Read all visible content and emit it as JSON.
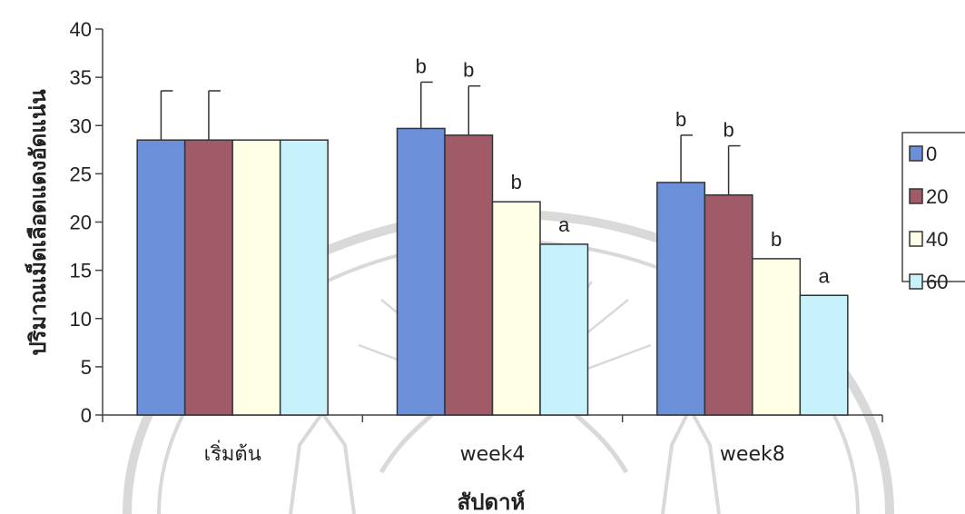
{
  "chart_data": {
    "type": "bar",
    "title": "",
    "xlabel": "สัปดาห์",
    "ylabel": "ปริมาณเม็ดเลือดแดงอัดแน่น",
    "ylim": [
      0,
      40
    ],
    "yticks": [
      "0",
      "5",
      "10",
      "15",
      "20",
      "25",
      "30",
      "35",
      "40"
    ],
    "categories": [
      "เริ่มต้น",
      "week4",
      "week8"
    ],
    "series": [
      {
        "name": "0",
        "color": "#6b8fd8",
        "values": [
          28.5,
          29.7,
          24.1
        ],
        "errors": [
          5.1,
          4.8,
          4.9
        ],
        "labels": [
          "",
          "b",
          "b"
        ]
      },
      {
        "name": "20",
        "color": "#a05a68",
        "values": [
          28.5,
          29.0,
          22.8
        ],
        "errors": [
          5.1,
          5.1,
          5.1
        ],
        "labels": [
          "",
          "b",
          "b"
        ]
      },
      {
        "name": "40",
        "color": "#ffffe6",
        "values": [
          28.5,
          22.1,
          16.2
        ],
        "errors": [
          0,
          0,
          0
        ],
        "labels": [
          "",
          "b",
          "b"
        ]
      },
      {
        "name": "60",
        "color": "#c8f2fb",
        "values": [
          28.5,
          17.7,
          12.4
        ],
        "errors": [
          0,
          0,
          0
        ],
        "labels": [
          "",
          "a",
          "a"
        ]
      }
    ],
    "legend": "right",
    "grid": false
  }
}
